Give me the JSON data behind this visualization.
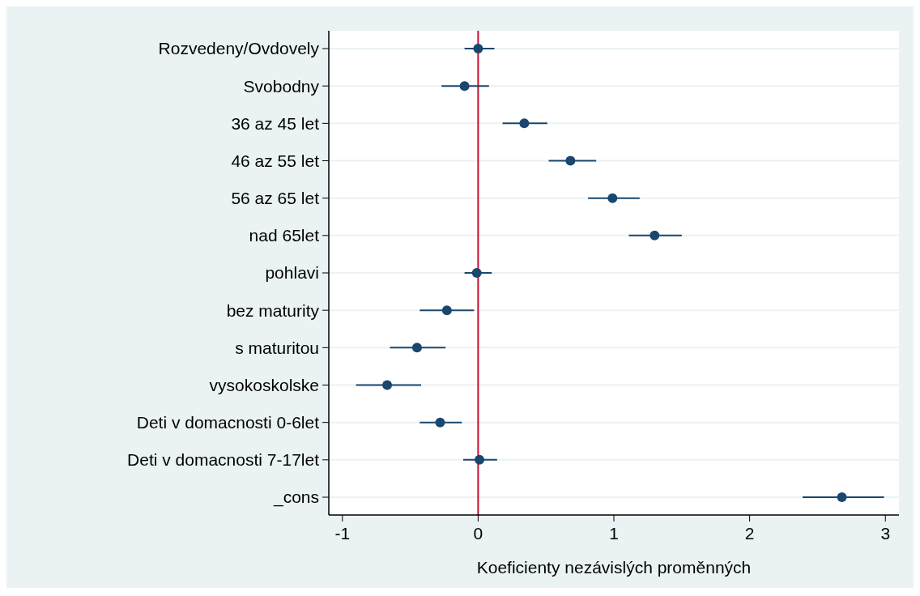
{
  "chart_data": {
    "type": "scatter",
    "orientation": "horizontal",
    "xlabel": "Koeficienty nezávislých proměnných",
    "categories": [
      "Rozvedeny/Ovdovely",
      "Svobodny",
      "36 az 45 let",
      "46 az 55 let",
      "56 az 65 let",
      "nad 65let",
      "pohlavi",
      "bez maturity",
      "s maturitou",
      "vysokoskolske",
      "Deti v domacnosti 0-6let",
      "Deti v domacnosti 7-17let",
      "_cons"
    ],
    "series": [
      {
        "color": "#1a476f",
        "values": [
          0.0,
          -0.1,
          0.34,
          0.68,
          0.99,
          1.3,
          -0.01,
          -0.23,
          -0.45,
          -0.67,
          -0.28,
          0.01,
          2.68
        ],
        "errors": [
          [
            -0.1,
            0.12
          ],
          [
            -0.27,
            0.08
          ],
          [
            0.18,
            0.51
          ],
          [
            0.52,
            0.87
          ],
          [
            0.81,
            1.19
          ],
          [
            1.11,
            1.5
          ],
          [
            -0.1,
            0.1
          ],
          [
            -0.43,
            -0.03
          ],
          [
            -0.65,
            -0.24
          ],
          [
            -0.9,
            -0.42
          ],
          [
            -0.43,
            -0.12
          ],
          [
            -0.11,
            0.14
          ],
          [
            2.39,
            2.99
          ]
        ]
      }
    ],
    "xlim": [
      -1.1,
      3.1
    ],
    "xticks": [
      -1,
      0,
      1,
      2,
      3
    ],
    "ref_lines": [
      {
        "axis": "x",
        "value": 0,
        "color": "#c8102e"
      }
    ],
    "grid": "y",
    "marker": "circle"
  }
}
